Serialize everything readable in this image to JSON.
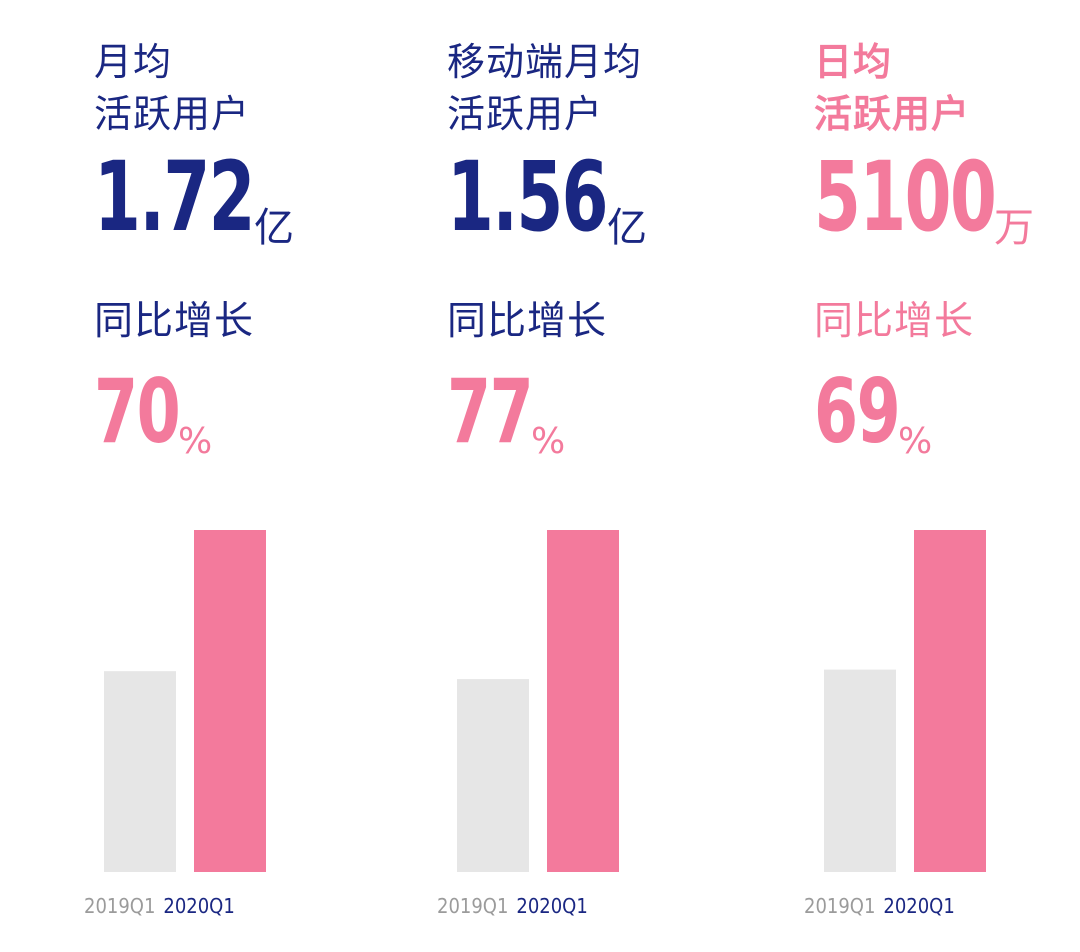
{
  "colors": {
    "navy": "#1a2782",
    "pink": "#f37a9c",
    "gray_bar": "#e6e6e6",
    "gray_text": "#9b9b9b"
  },
  "panels": [
    {
      "title_lines": [
        "月均",
        "活跃用户"
      ],
      "title_color": "navy",
      "value": "1.72",
      "value_unit": "亿",
      "value_color": "navy",
      "growth_label": "同比增长",
      "growth_label_color": "navy",
      "growth_value": "70",
      "growth_unit": "%"
    },
    {
      "title_lines": [
        "移动端月均",
        "活跃用户"
      ],
      "title_color": "navy",
      "value": "1.56",
      "value_unit": "亿",
      "value_color": "navy",
      "growth_label": "同比增长",
      "growth_label_color": "navy",
      "growth_value": "77",
      "growth_unit": "%"
    },
    {
      "title_lines": [
        "日均",
        "活跃用户"
      ],
      "title_color": "pink",
      "value": "5100",
      "value_unit": "万",
      "value_color": "pink",
      "growth_label": "同比增长",
      "growth_label_color": "pink",
      "growth_value": "69",
      "growth_unit": "%"
    }
  ],
  "chart_data": [
    {
      "type": "bar",
      "categories": [
        "2019Q1",
        "2020Q1"
      ],
      "values": [
        1.01,
        1.72
      ],
      "ylim": [
        0,
        1.72
      ]
    },
    {
      "type": "bar",
      "categories": [
        "2019Q1",
        "2020Q1"
      ],
      "values": [
        0.88,
        1.56
      ],
      "ylim": [
        0,
        1.56
      ]
    },
    {
      "type": "bar",
      "categories": [
        "2019Q1",
        "2020Q1"
      ],
      "values": [
        3018,
        5100
      ],
      "ylim": [
        0,
        5100
      ]
    }
  ]
}
